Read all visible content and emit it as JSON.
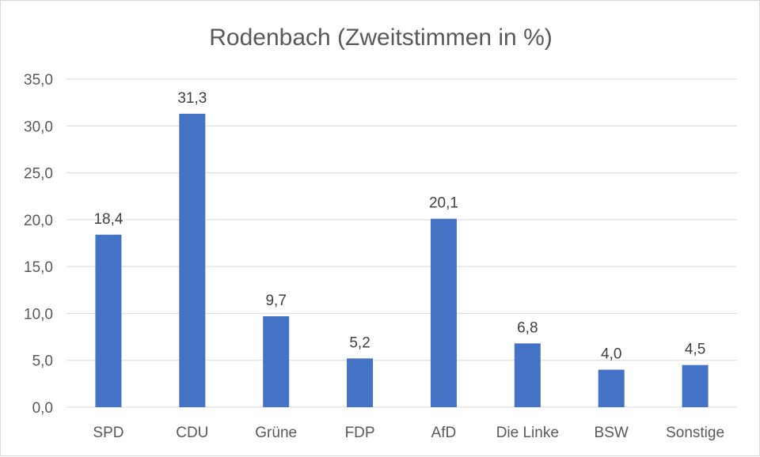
{
  "chart_data": {
    "type": "bar",
    "title": "Rodenbach (Zweitstimmen in %)",
    "xlabel": "",
    "ylabel": "",
    "ylim": [
      0,
      35
    ],
    "y_ticks": [
      "0,0",
      "5,0",
      "10,0",
      "15,0",
      "20,0",
      "25,0",
      "30,0",
      "35,0"
    ],
    "y_tick_values": [
      0,
      5,
      10,
      15,
      20,
      25,
      30,
      35
    ],
    "categories": [
      "SPD",
      "CDU",
      "Grüne",
      "FDP",
      "AfD",
      "Die Linke",
      "BSW",
      "Sonstige"
    ],
    "values": [
      18.4,
      31.3,
      9.7,
      5.2,
      20.1,
      6.8,
      4.0,
      4.5
    ],
    "data_labels": [
      "18,4",
      "31,3",
      "9,7",
      "5,2",
      "20,1",
      "6,8",
      "4,0",
      "4,5"
    ],
    "grid": true,
    "legend": "none",
    "bar_color": "#4472c4",
    "grid_color": "#d9d9d9"
  }
}
